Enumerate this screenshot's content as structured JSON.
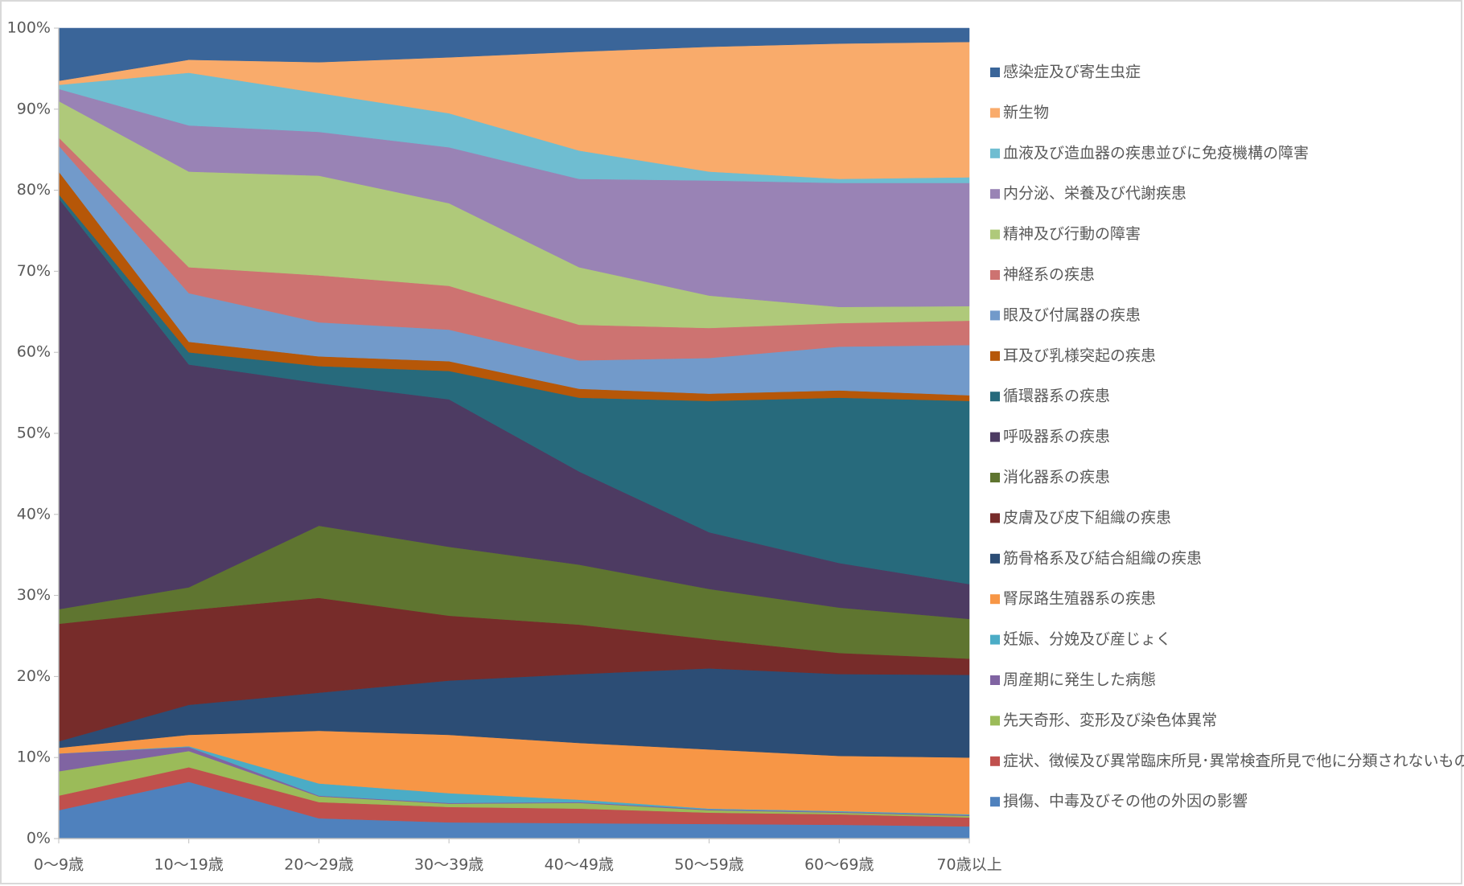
{
  "chart_data": {
    "type": "stacked_area",
    "categories": [
      "0～9歳",
      "10～19歳",
      "20～29歳",
      "30～39歳",
      "40～49歳",
      "50～59歳",
      "60～69歳",
      "70歳以上"
    ],
    "ylim": [
      0,
      100
    ],
    "yticks": [
      {
        "value": 0,
        "label": "0%"
      },
      {
        "value": 10,
        "label": "10%"
      },
      {
        "value": 20,
        "label": "20%"
      },
      {
        "value": 30,
        "label": "30%"
      },
      {
        "value": 40,
        "label": "40%"
      },
      {
        "value": 50,
        "label": "50%"
      },
      {
        "value": 60,
        "label": "60%"
      },
      {
        "value": 70,
        "label": "70%"
      },
      {
        "value": 80,
        "label": "80%"
      },
      {
        "value": 90,
        "label": "90%"
      },
      {
        "value": 100,
        "label": "100%"
      }
    ],
    "grid": false,
    "legend": "right",
    "series": [
      {
        "name": "損傷、中毒及びその他の外因の影響",
        "color": "#4f81bd",
        "values": [
          3.5,
          7.0,
          2.5,
          2.0,
          1.9,
          1.8,
          1.7,
          1.5
        ]
      },
      {
        "name": "症状、徴候及び異常臨床所見･異常検査所見で他に分類されないもの",
        "color": "#c0504d",
        "values": [
          1.8,
          1.8,
          2.0,
          1.9,
          1.8,
          1.4,
          1.3,
          1.1
        ]
      },
      {
        "name": "先天奇形、変形及び染色体異常",
        "color": "#9bbb59",
        "values": [
          3.0,
          2.0,
          0.7,
          0.4,
          0.7,
          0.3,
          0.2,
          0.2
        ]
      },
      {
        "name": "周産期に発生した病態",
        "color": "#8064a2",
        "values": [
          2.2,
          0.5,
          0.1,
          0.1,
          0.1,
          0.1,
          0.1,
          0.1
        ]
      },
      {
        "name": "妊娠、分娩及び産じょく",
        "color": "#4bacc6",
        "values": [
          0,
          0.1,
          1.5,
          1.2,
          0.3,
          0.1,
          0.1,
          0.1
        ]
      },
      {
        "name": "腎尿路生殖器系の疾患",
        "color": "#f79646",
        "values": [
          0.7,
          1.4,
          6.5,
          7.2,
          7.0,
          7.3,
          6.8,
          7.0
        ]
      },
      {
        "name": "筋骨格系及び結合組織の疾患",
        "color": "#2c4d75",
        "values": [
          0.8,
          3.7,
          4.7,
          6.7,
          8.5,
          10.0,
          10.1,
          10.2
        ]
      },
      {
        "name": "皮膚及び皮下組織の疾患",
        "color": "#772c2a",
        "values": [
          14.5,
          11.7,
          11.7,
          8.0,
          6.1,
          3.6,
          2.6,
          2.0
        ]
      },
      {
        "name": "消化器系の疾患",
        "color": "#5f7530",
        "values": [
          1.8,
          2.8,
          8.9,
          8.5,
          7.4,
          6.2,
          5.6,
          4.9
        ]
      },
      {
        "name": "呼吸器系の疾患",
        "color": "#4d3b62",
        "values": [
          50.7,
          27.5,
          17.6,
          18.2,
          11.5,
          7.0,
          5.5,
          4.3
        ]
      },
      {
        "name": "循環器系の疾患",
        "color": "#276a7c",
        "values": [
          0.5,
          1.5,
          2.1,
          3.5,
          9.1,
          16.2,
          20.4,
          22.6
        ]
      },
      {
        "name": "耳及び乳様突起の疾患",
        "color": "#b65708",
        "values": [
          2.8,
          1.3,
          1.2,
          1.2,
          1.1,
          0.9,
          0.9,
          0.7
        ]
      },
      {
        "name": "眼及び付属器の疾患",
        "color": "#729aca",
        "values": [
          3.2,
          6.0,
          4.2,
          3.9,
          3.5,
          4.4,
          5.4,
          6.2
        ]
      },
      {
        "name": "神経系の疾患",
        "color": "#cd7371",
        "values": [
          1.0,
          3.2,
          5.8,
          5.4,
          4.4,
          3.7,
          2.9,
          3.0
        ]
      },
      {
        "name": "精神及び行動の障害",
        "color": "#afc97a",
        "values": [
          4.5,
          11.8,
          12.3,
          10.2,
          7.1,
          4.0,
          2.0,
          1.8
        ]
      },
      {
        "name": "内分泌、栄養及び代謝疾患",
        "color": "#9983b5",
        "values": [
          1.5,
          5.7,
          5.4,
          6.9,
          10.9,
          14.2,
          15.3,
          15.2
        ]
      },
      {
        "name": "血液及び造血器の疾患並びに免疫機構の障害",
        "color": "#6fbdd1",
        "values": [
          0.5,
          6.5,
          4.8,
          4.2,
          3.5,
          1.1,
          0.5,
          0.7
        ]
      },
      {
        "name": "新生物",
        "color": "#f9ab6b",
        "values": [
          0.5,
          1.6,
          3.8,
          6.9,
          12.2,
          15.4,
          16.7,
          16.7
        ]
      },
      {
        "name": "感染症及び寄生虫症",
        "color": "#3a6599",
        "values": [
          6.5,
          3.9,
          4.2,
          3.6,
          2.9,
          2.3,
          1.9,
          1.7
        ]
      }
    ]
  }
}
